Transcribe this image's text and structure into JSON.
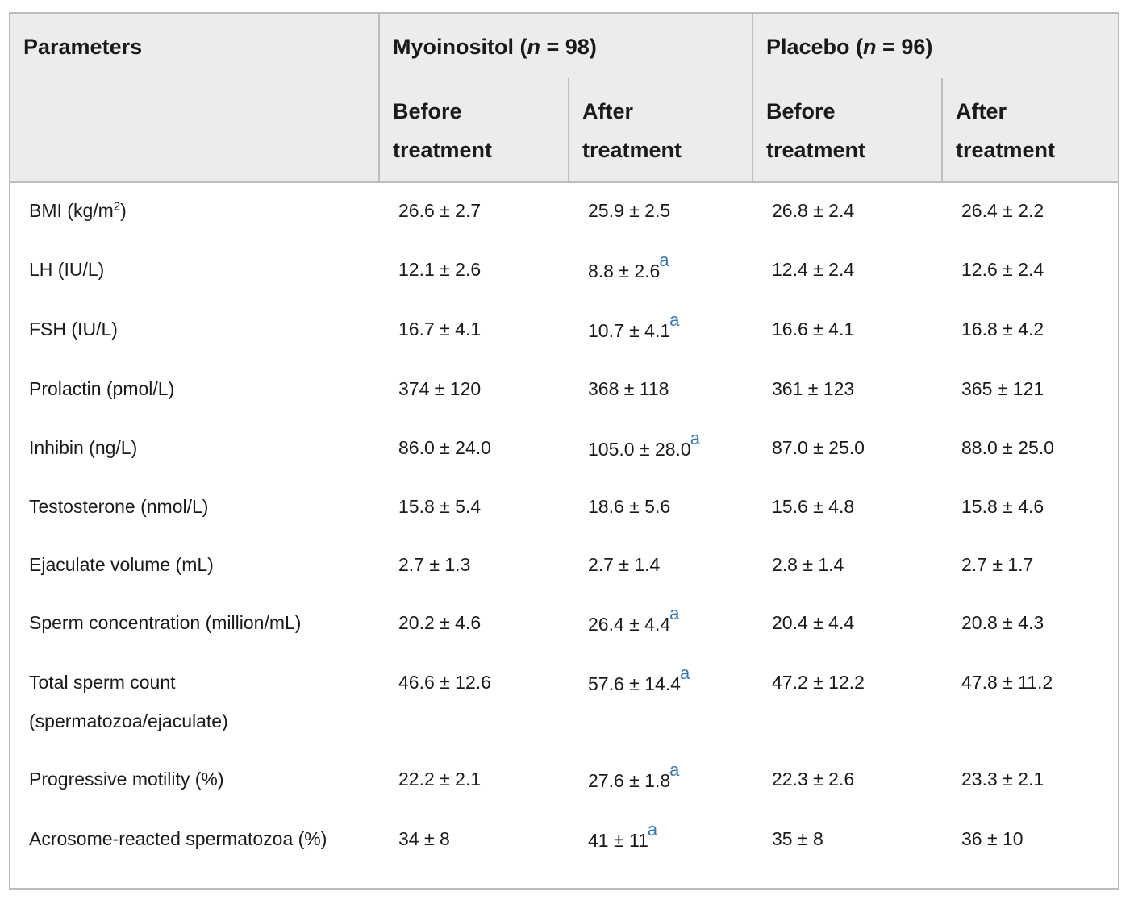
{
  "header": {
    "parameters": "Parameters",
    "group1_name": "Myoinositol",
    "group1_n": "98",
    "group2_name": "Placebo",
    "group2_n": "96",
    "n_symbol": "n",
    "before_line1": "Before",
    "before_line2": "treatment",
    "after_line1": "After",
    "after_line2": "treatment"
  },
  "footnote_marker": "a",
  "rows": [
    {
      "param": "BMI (kg/m",
      "param_sup": "2",
      "param_tail": ")",
      "c1": "26.6 ± 2.7",
      "c2": "25.9 ± 2.5",
      "c2_mark": "",
      "c3": "26.8 ± 2.4",
      "c4": "26.4 ± 2.2"
    },
    {
      "param": "LH (IU/L)",
      "c1": "12.1 ± 2.6",
      "c2": "8.8 ± 2.6",
      "c2_mark": "a",
      "c3": "12.4 ± 2.4",
      "c4": "12.6 ± 2.4"
    },
    {
      "param": "FSH (IU/L)",
      "c1": "16.7 ± 4.1",
      "c2": "10.7 ± 4.1",
      "c2_mark": "a",
      "c3": "16.6 ± 4.1",
      "c4": "16.8 ± 4.2"
    },
    {
      "param": "Prolactin (pmol/L)",
      "c1": "374 ± 120",
      "c2": "368 ± 118",
      "c2_mark": "",
      "c3": "361 ± 123",
      "c4": "365 ± 121"
    },
    {
      "param": "Inhibin (ng/L)",
      "c1": "86.0 ± 24.0",
      "c2": "105.0 ± 28.0",
      "c2_mark": "a",
      "c3": "87.0 ± 25.0",
      "c4": "88.0 ± 25.0"
    },
    {
      "param": "Testosterone (nmol/L)",
      "c1": "15.8 ± 5.4",
      "c2": "18.6 ± 5.6",
      "c2_mark": "",
      "c3": "15.6 ± 4.8",
      "c4": "15.8 ± 4.6"
    },
    {
      "param": "Ejaculate volume (mL)",
      "c1": "2.7 ± 1.3",
      "c2": "2.7 ± 1.4",
      "c2_mark": "",
      "c3": "2.8 ± 1.4",
      "c4": "2.7 ± 1.7"
    },
    {
      "param": "Sperm concentration (million/mL)",
      "c1": "20.2 ± 4.6",
      "c2": "26.4 ± 4.4",
      "c2_mark": "a",
      "c3": "20.4 ± 4.4",
      "c4": "20.8 ± 4.3"
    },
    {
      "param": "Total sperm count",
      "param_line2": "(spermatozoa/ejaculate)",
      "c1": "46.6 ± 12.6",
      "c2": "57.6 ± 14.4",
      "c2_mark": "a",
      "c3": "47.2 ± 12.2",
      "c4": "47.8 ± 11.2"
    },
    {
      "param": "Progressive motility (%)",
      "c1": "22.2 ± 2.1",
      "c2": "27.6 ± 1.8",
      "c2_mark": "a",
      "c3": "22.3 ± 2.6",
      "c4": "23.3 ± 2.1"
    },
    {
      "param": "Acrosome-reacted spermatozoa (%)",
      "c1": "34 ± 8",
      "c2": "41 ± 11",
      "c2_mark": "a",
      "c3": "35 ± 8",
      "c4": "36 ± 10"
    }
  ]
}
